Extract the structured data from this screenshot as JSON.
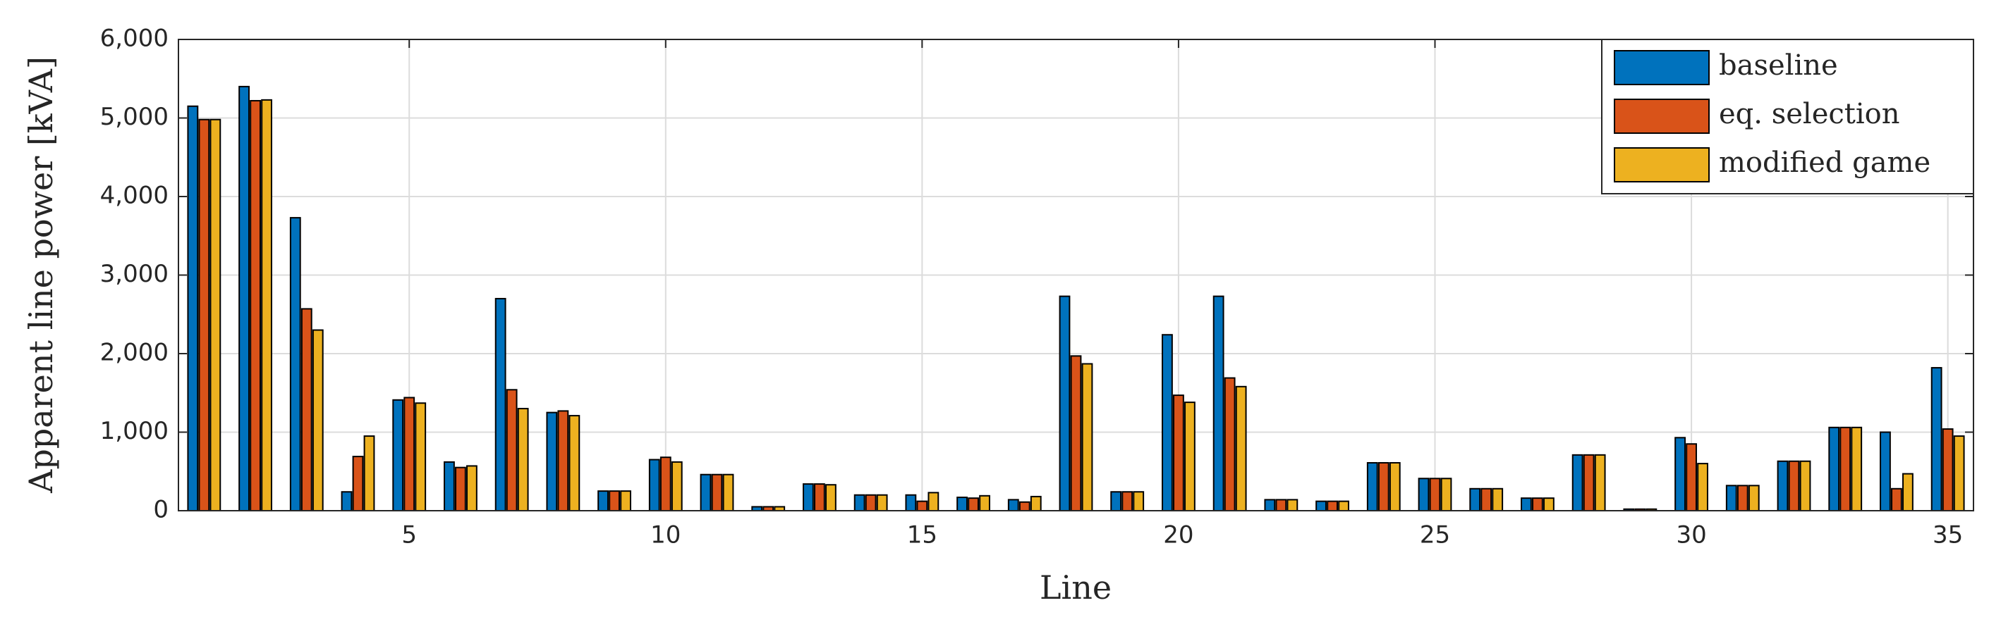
{
  "chart_data": {
    "type": "bar",
    "x_label": "Line",
    "y_label": "Apparent line power [kVA]",
    "x": [
      1,
      2,
      3,
      4,
      5,
      6,
      7,
      8,
      9,
      10,
      11,
      12,
      13,
      14,
      15,
      16,
      17,
      18,
      19,
      20,
      21,
      22,
      23,
      24,
      25,
      26,
      27,
      28,
      29,
      30,
      31,
      32,
      33,
      34,
      35
    ],
    "series": [
      {
        "name": "baseline",
        "color": "#0072bd",
        "values": [
          5150,
          5400,
          3730,
          240,
          1410,
          620,
          2700,
          1250,
          250,
          650,
          460,
          50,
          340,
          200,
          200,
          170,
          140,
          2730,
          240,
          2240,
          2730,
          140,
          120,
          610,
          410,
          280,
          160,
          710,
          20,
          930,
          320,
          630,
          1060,
          1000,
          1820
        ]
      },
      {
        "name": "eq. selection",
        "color": "#d95319",
        "values": [
          4980,
          5220,
          2570,
          690,
          1440,
          550,
          1540,
          1270,
          250,
          680,
          460,
          50,
          340,
          200,
          120,
          160,
          110,
          1970,
          240,
          1470,
          1690,
          140,
          120,
          610,
          410,
          280,
          160,
          710,
          20,
          850,
          320,
          630,
          1060,
          280,
          1040
        ]
      },
      {
        "name": "modified game",
        "color": "#edb120",
        "values": [
          4980,
          5230,
          2300,
          950,
          1370,
          570,
          1300,
          1210,
          250,
          620,
          460,
          50,
          330,
          200,
          230,
          190,
          180,
          1870,
          240,
          1380,
          1580,
          140,
          120,
          610,
          410,
          280,
          160,
          710,
          20,
          600,
          320,
          630,
          1060,
          470,
          950
        ]
      }
    ],
    "xlim": [
      0.5,
      35.5
    ],
    "xticks": [
      5,
      10,
      15,
      20,
      25,
      30,
      35
    ],
    "ylim": [
      0,
      6000
    ],
    "yticks": [
      0,
      {
        "value": 1000,
        "label": "1,000"
      },
      {
        "value": 2000,
        "label": "2,000"
      },
      {
        "value": 3000,
        "label": "3,000"
      },
      {
        "value": 4000,
        "label": "4,000"
      },
      {
        "value": 5000,
        "label": "5,000"
      },
      {
        "value": 6000,
        "label": "6,000"
      }
    ],
    "grid": true,
    "legend": "upper right"
  }
}
